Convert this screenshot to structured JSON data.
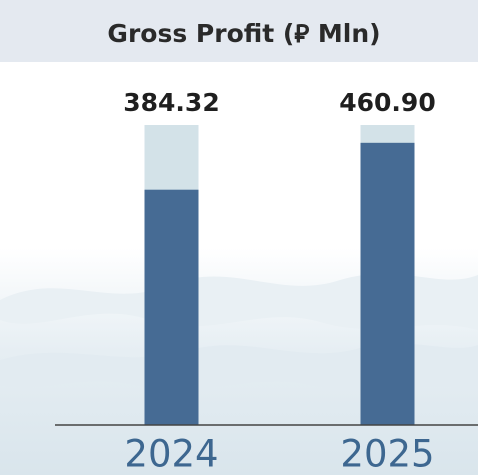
{
  "chart_data": {
    "type": "bar",
    "title": "Gross Profit (⃁ Mln)",
    "categories": [
      "2024",
      "2025"
    ],
    "values": [
      384.32,
      460.9
    ],
    "value_labels": [
      "384.32",
      "460.90"
    ],
    "color": "#466b94",
    "ylim": [
      0,
      490
    ]
  }
}
